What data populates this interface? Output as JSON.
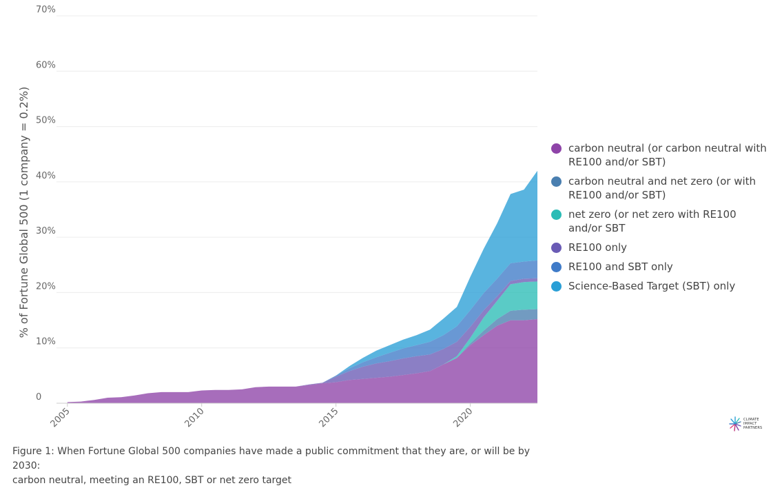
{
  "chart_data": {
    "type": "area",
    "stacked": true,
    "title": "",
    "ylabel": "% of Fortune Global 500 (1 company = 0.2%)",
    "xlabel": "",
    "x": [
      2005,
      2005.5,
      2006,
      2006.5,
      2007,
      2007.5,
      2008,
      2008.5,
      2009,
      2009.5,
      2010,
      2010.5,
      2011,
      2011.5,
      2012,
      2012.5,
      2013,
      2013.5,
      2014,
      2014.5,
      2015,
      2015.5,
      2016,
      2016.5,
      2017,
      2017.5,
      2018,
      2018.5,
      2019,
      2019.5,
      2020,
      2020.5,
      2021,
      2021.5,
      2022,
      2022.5
    ],
    "xlim": [
      2004.8,
      2022.5
    ],
    "ylim": [
      0,
      70
    ],
    "x_ticks": [
      "2005",
      "2010",
      "2015",
      "2020"
    ],
    "y_ticks": [
      "0",
      "10%",
      "20%",
      "30%",
      "40%",
      "50%",
      "60%",
      "70%"
    ],
    "y_tick_values": [
      0,
      10,
      20,
      30,
      40,
      50,
      60,
      70
    ],
    "grid": true,
    "legend_position": "right",
    "series": [
      {
        "name": "carbon neutral (or carbon neutral with RE100 and/or SBT)",
        "color": "#8e44a8",
        "values": [
          0.2,
          0.3,
          0.6,
          1.0,
          1.1,
          1.4,
          1.8,
          2.0,
          2.0,
          2.0,
          2.3,
          2.4,
          2.4,
          2.5,
          2.9,
          3.0,
          3.0,
          3.0,
          3.3,
          3.6,
          3.8,
          4.2,
          4.4,
          4.6,
          4.8,
          5.1,
          5.4,
          5.8,
          7.0,
          8.2,
          10.5,
          12.3,
          14.0,
          15.0,
          15.0,
          15.2
        ]
      },
      {
        "name": "carbon neutral and net zero (or with RE100 and/or SBT)",
        "color": "#4a7fb0",
        "values": [
          0,
          0,
          0,
          0,
          0,
          0,
          0,
          0,
          0,
          0,
          0,
          0,
          0,
          0,
          0,
          0,
          0,
          0,
          0,
          0,
          0,
          0,
          0,
          0,
          0,
          0,
          0,
          0,
          0,
          0,
          0.3,
          0.8,
          1.2,
          1.7,
          1.9,
          1.8
        ]
      },
      {
        "name": "net zero (or net zero with RE100 and/or SBT",
        "color": "#2bbcb6",
        "values": [
          0,
          0,
          0,
          0,
          0,
          0,
          0,
          0,
          0,
          0,
          0,
          0,
          0,
          0,
          0,
          0,
          0,
          0,
          0,
          0,
          0,
          0,
          0,
          0,
          0,
          0,
          0,
          0,
          0,
          0.3,
          1.0,
          2.4,
          3.3,
          4.8,
          5.0,
          5.0
        ]
      },
      {
        "name": "RE100 only",
        "color": "#6a5bb5",
        "values": [
          0,
          0,
          0,
          0,
          0,
          0,
          0,
          0,
          0,
          0,
          0,
          0,
          0,
          0,
          0,
          0,
          0,
          0,
          0.1,
          0.1,
          1.0,
          1.6,
          2.2,
          2.6,
          2.8,
          3.0,
          3.1,
          3.0,
          2.8,
          2.6,
          2.0,
          1.3,
          0.8,
          0.6,
          0.6,
          0.6
        ]
      },
      {
        "name": "RE100 and SBT only",
        "color": "#3f7bc8",
        "values": [
          0,
          0,
          0,
          0,
          0,
          0,
          0,
          0,
          0,
          0,
          0,
          0,
          0,
          0,
          0,
          0,
          0,
          0,
          0,
          0,
          0.2,
          0.5,
          0.8,
          1.1,
          1.5,
          1.8,
          2.0,
          2.3,
          2.5,
          2.8,
          3.0,
          3.1,
          3.2,
          3.2,
          3.1,
          3.2
        ]
      },
      {
        "name": "Science-Based Target (SBT) only",
        "color": "#2a9fd6",
        "values": [
          0,
          0,
          0,
          0,
          0,
          0,
          0,
          0,
          0,
          0,
          0,
          0,
          0,
          0,
          0,
          0,
          0,
          0,
          0,
          0,
          0,
          0.4,
          0.8,
          1.2,
          1.4,
          1.6,
          1.8,
          2.2,
          3.0,
          3.5,
          6.0,
          8.0,
          10.0,
          12.5,
          13.0,
          16.2
        ]
      }
    ]
  },
  "caption": {
    "line1": "Figure 1: When Fortune Global 500 companies have made a public commitment that they are, or will be by 2030:",
    "line2": "carbon neutral, meeting an RE100, SBT or net zero target"
  },
  "logo": {
    "line1": "CLIMATE",
    "line2": "IMPACT",
    "line3": "PARTNERS"
  }
}
